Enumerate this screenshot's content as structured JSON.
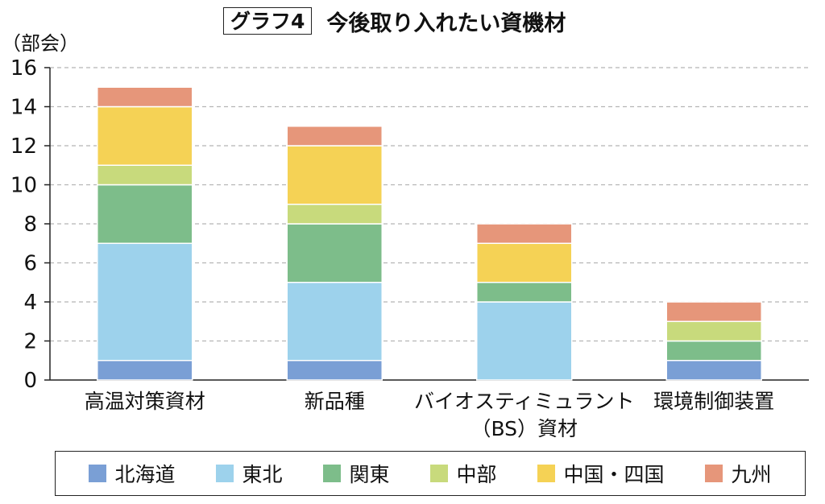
{
  "title": {
    "label": "グラフ4",
    "text": "今後取り入れたい資機材"
  },
  "chart_data": {
    "type": "bar",
    "stacked": true,
    "title": "グラフ4 今後取り入れたい資機材",
    "ylabel": "（部会）",
    "xlabel": "",
    "ylim": [
      0,
      16
    ],
    "yticks": [
      0,
      2,
      4,
      6,
      8,
      10,
      12,
      14,
      16
    ],
    "grid": true,
    "legend_position": "bottom",
    "categories": [
      {
        "line1": "高温対策資材",
        "line2": ""
      },
      {
        "line1": "新品種",
        "line2": ""
      },
      {
        "line1": "バイオスティミュラント",
        "line2": "（BS）資材"
      },
      {
        "line1": "環境制御装置",
        "line2": ""
      }
    ],
    "series": [
      {
        "name": "北海道",
        "color": "#7a9fd5",
        "values": [
          1,
          1,
          0,
          1
        ]
      },
      {
        "name": "東北",
        "color": "#9dd2ec",
        "values": [
          6,
          4,
          4,
          0
        ]
      },
      {
        "name": "関東",
        "color": "#7dbd8a",
        "values": [
          3,
          3,
          1,
          1
        ]
      },
      {
        "name": "中部",
        "color": "#c8da7c",
        "values": [
          1,
          1,
          0,
          1
        ]
      },
      {
        "name": "中国・四国",
        "color": "#f5d255",
        "values": [
          3,
          3,
          2,
          0
        ]
      },
      {
        "name": "九州",
        "color": "#e6967a",
        "values": [
          1,
          1,
          1,
          1
        ]
      }
    ]
  }
}
